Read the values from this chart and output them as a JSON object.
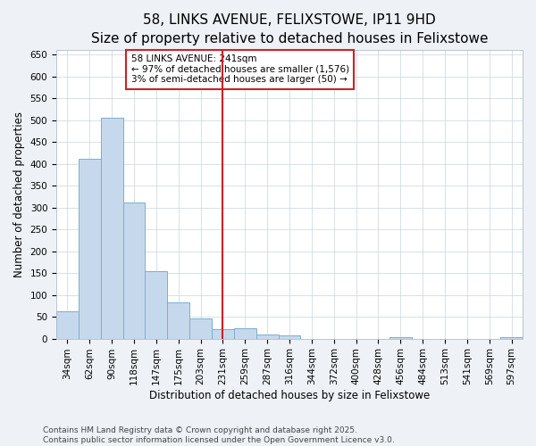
{
  "title": "58, LINKS AVENUE, FELIXSTOWE, IP11 9HD",
  "subtitle": "Size of property relative to detached houses in Felixstowe",
  "xlabel": "Distribution of detached houses by size in Felixstowe",
  "ylabel": "Number of detached properties",
  "categories": [
    "34sqm",
    "62sqm",
    "90sqm",
    "118sqm",
    "147sqm",
    "175sqm",
    "203sqm",
    "231sqm",
    "259sqm",
    "287sqm",
    "316sqm",
    "344sqm",
    "372sqm",
    "400sqm",
    "428sqm",
    "456sqm",
    "484sqm",
    "513sqm",
    "541sqm",
    "569sqm",
    "597sqm"
  ],
  "values": [
    62,
    412,
    505,
    312,
    155,
    82,
    46,
    22,
    24,
    10,
    7,
    0,
    0,
    0,
    0,
    3,
    0,
    0,
    0,
    0,
    4
  ],
  "bar_color": "#c6d9ec",
  "bar_edge_color": "#7aaed0",
  "vline_x_index": 7,
  "vline_color": "#cc2222",
  "annotation_text": "58 LINKS AVENUE: 241sqm\n← 97% of detached houses are smaller (1,576)\n3% of semi-detached houses are larger (50) →",
  "annotation_box_facecolor": "#ffffff",
  "annotation_box_edgecolor": "#cc2222",
  "ylim": [
    0,
    660
  ],
  "yticks": [
    0,
    50,
    100,
    150,
    200,
    250,
    300,
    350,
    400,
    450,
    500,
    550,
    600,
    650
  ],
  "title_fontsize": 11,
  "subtitle_fontsize": 9.5,
  "ylabel_fontsize": 8.5,
  "xlabel_fontsize": 8.5,
  "tick_fontsize": 7.5,
  "annot_fontsize": 7.5,
  "footer_text": "Contains HM Land Registry data © Crown copyright and database right 2025.\nContains public sector information licensed under the Open Government Licence v3.0.",
  "footer_fontsize": 6.5,
  "background_color": "#eef2f7",
  "plot_background_color": "#ffffff",
  "grid_color": "#c8d4e0"
}
